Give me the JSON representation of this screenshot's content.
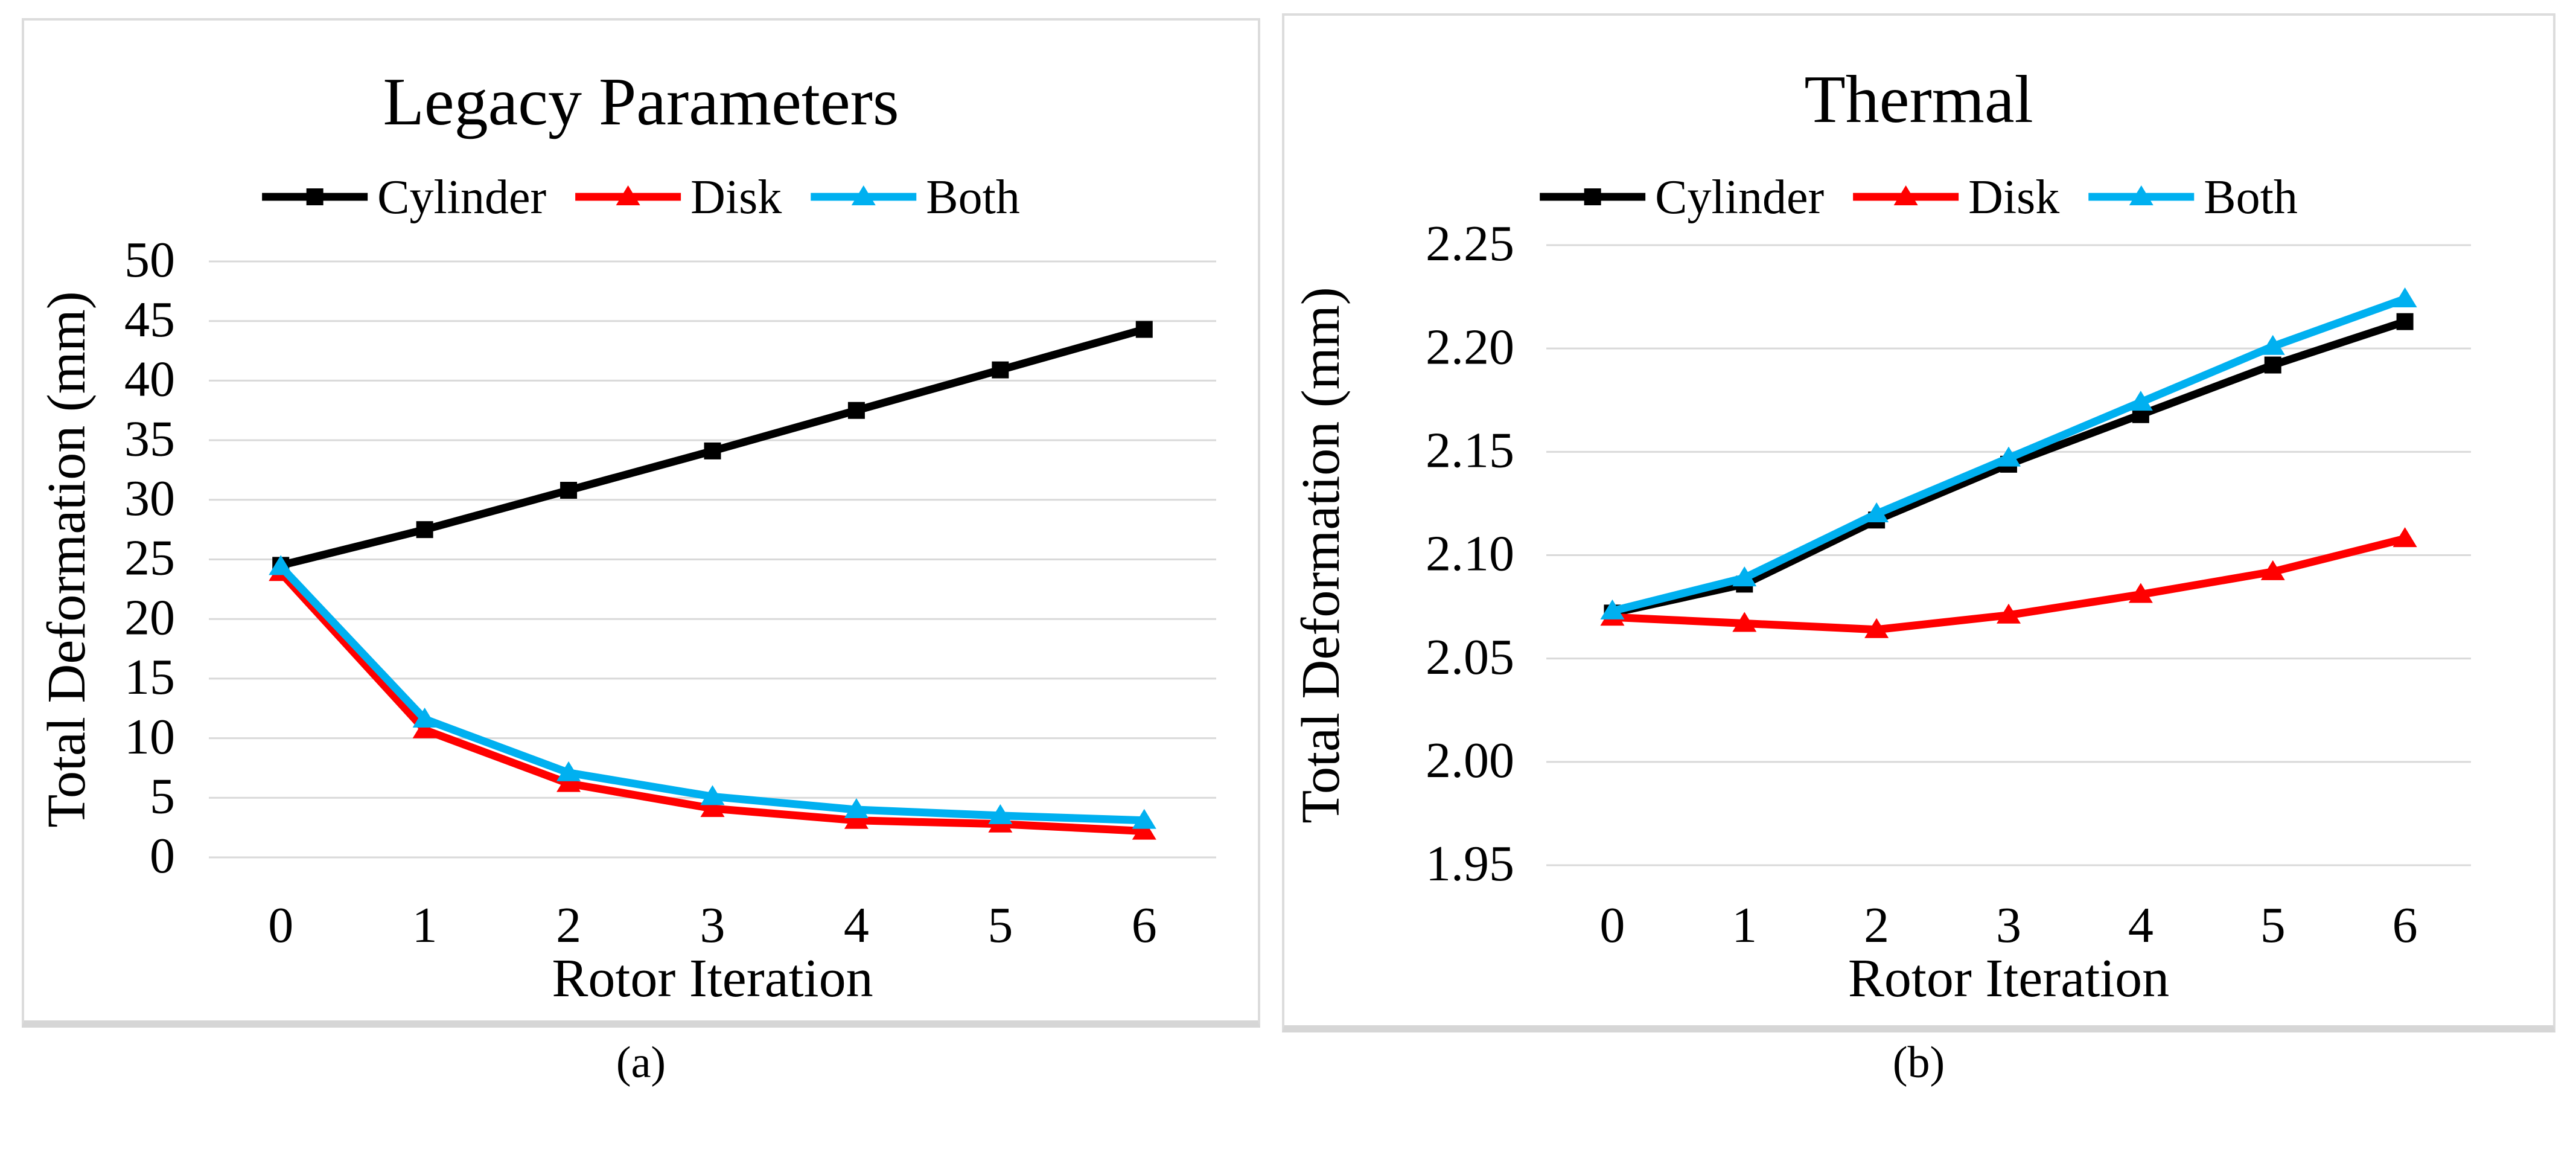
{
  "figure": {
    "captions": [
      "(a)",
      "(b)"
    ]
  },
  "styles": {
    "grid_color": "#D9D9D9",
    "panel_border_color": "#DCDCDC",
    "panel_shadow_color": "#D6D6D6",
    "text_color": "#000000",
    "background": "#FFFFFF",
    "series_colors": {
      "cylinder": "#000000",
      "disk": "#FF0000",
      "both": "#00B0F0"
    }
  },
  "chart_data": [
    {
      "id": "legacy-parameters",
      "type": "line",
      "title": "Legacy Parameters",
      "xlabel": "Rotor Iteration",
      "ylabel": "Total Deformation (mm)",
      "categories": [
        "0",
        "1",
        "2",
        "3",
        "4",
        "5",
        "6"
      ],
      "ylim": [
        0,
        50
      ],
      "grid": true,
      "legend_position": "top",
      "yticks": [
        {
          "v": 0,
          "label": "0"
        },
        {
          "v": 5,
          "label": "5"
        },
        {
          "v": 10,
          "label": "10"
        },
        {
          "v": 15,
          "label": "15"
        },
        {
          "v": 20,
          "label": "20"
        },
        {
          "v": 25,
          "label": "25"
        },
        {
          "v": 30,
          "label": "30"
        },
        {
          "v": 35,
          "label": "35"
        },
        {
          "v": 40,
          "label": "40"
        },
        {
          "v": 45,
          "label": "45"
        },
        {
          "v": 50,
          "label": "50"
        }
      ],
      "series": [
        {
          "name": "Cylinder",
          "color": "#000000",
          "marker": "square",
          "values": [
            24.5,
            27.5,
            30.8,
            34.1,
            37.5,
            40.9,
            44.3
          ]
        },
        {
          "name": "Disk",
          "color": "#FF0000",
          "marker": "triangle",
          "values": [
            23.9,
            10.7,
            6.2,
            4.1,
            3.1,
            2.8,
            2.2
          ]
        },
        {
          "name": "Both",
          "color": "#00B0F0",
          "marker": "triangle",
          "values": [
            24.4,
            11.6,
            7.1,
            5.1,
            4.0,
            3.5,
            3.1
          ]
        }
      ]
    },
    {
      "id": "thermal",
      "type": "line",
      "title": "Thermal",
      "xlabel": "Rotor Iteration",
      "ylabel": "Total Deformation (mm)",
      "categories": [
        "0",
        "1",
        "2",
        "3",
        "4",
        "5",
        "6"
      ],
      "ylim": [
        1.95,
        2.25
      ],
      "grid": true,
      "legend_position": "top",
      "yticks": [
        {
          "v": 1.95,
          "label": "1.95"
        },
        {
          "v": 2.0,
          "label": "2.00"
        },
        {
          "v": 2.05,
          "label": "2.05"
        },
        {
          "v": 2.1,
          "label": "2.10"
        },
        {
          "v": 2.15,
          "label": "2.15"
        },
        {
          "v": 2.2,
          "label": "2.20"
        },
        {
          "v": 2.25,
          "label": "2.25"
        }
      ],
      "series": [
        {
          "name": "Cylinder",
          "color": "#000000",
          "marker": "square",
          "values": [
            2.072,
            2.086,
            2.117,
            2.144,
            2.168,
            2.192,
            2.213
          ]
        },
        {
          "name": "Disk",
          "color": "#FF0000",
          "marker": "triangle",
          "values": [
            2.07,
            2.067,
            2.064,
            2.071,
            2.081,
            2.092,
            2.108
          ]
        },
        {
          "name": "Both",
          "color": "#00B0F0",
          "marker": "triangle",
          "values": [
            2.073,
            2.089,
            2.12,
            2.147,
            2.174,
            2.201,
            2.224
          ]
        }
      ]
    }
  ]
}
